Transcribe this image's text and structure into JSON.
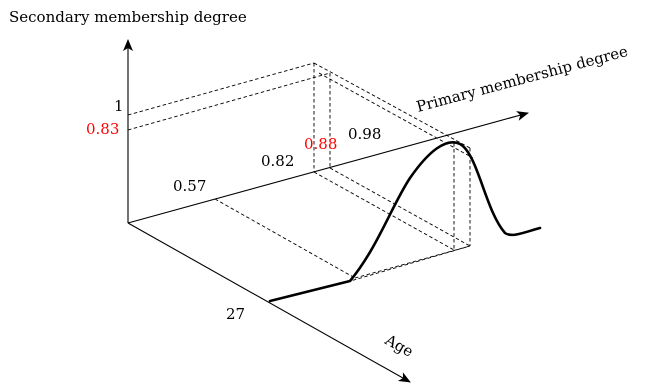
{
  "labels": {
    "z_axis": "Secondary membership degree",
    "y_axis": "Primary membership degree",
    "x_axis": "Age",
    "secondary_one": "1",
    "secondary_083": "0.83",
    "primary_057": "0.57",
    "primary_082": "0.82",
    "primary_088": "0.88",
    "primary_098": "0.98",
    "age_27": "27"
  },
  "colors": {
    "highlight": "#ff0000",
    "ink": "#000000"
  }
}
